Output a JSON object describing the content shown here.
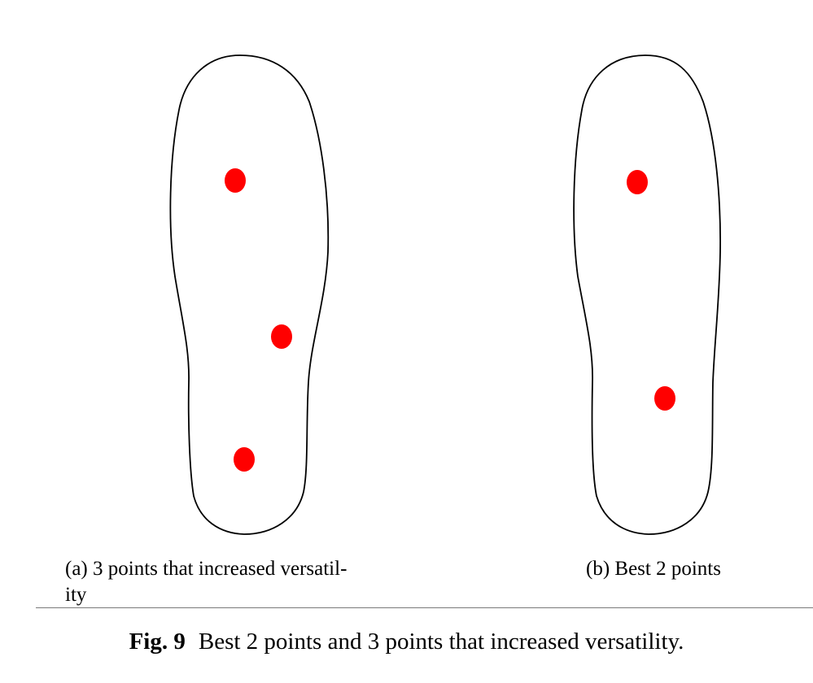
{
  "figure": {
    "panels": [
      {
        "id": "a",
        "caption": "(a) 3 points that increased versatil-\nity",
        "points": 3,
        "point_color": "#ff0000"
      },
      {
        "id": "b",
        "caption": "(b) Best 2 points",
        "points": 2,
        "point_color": "#ff0000"
      }
    ],
    "outline_color": "#000000",
    "caption_label": "Fig. 9",
    "caption_text": "Best 2 points and 3 points that increased versatility."
  }
}
